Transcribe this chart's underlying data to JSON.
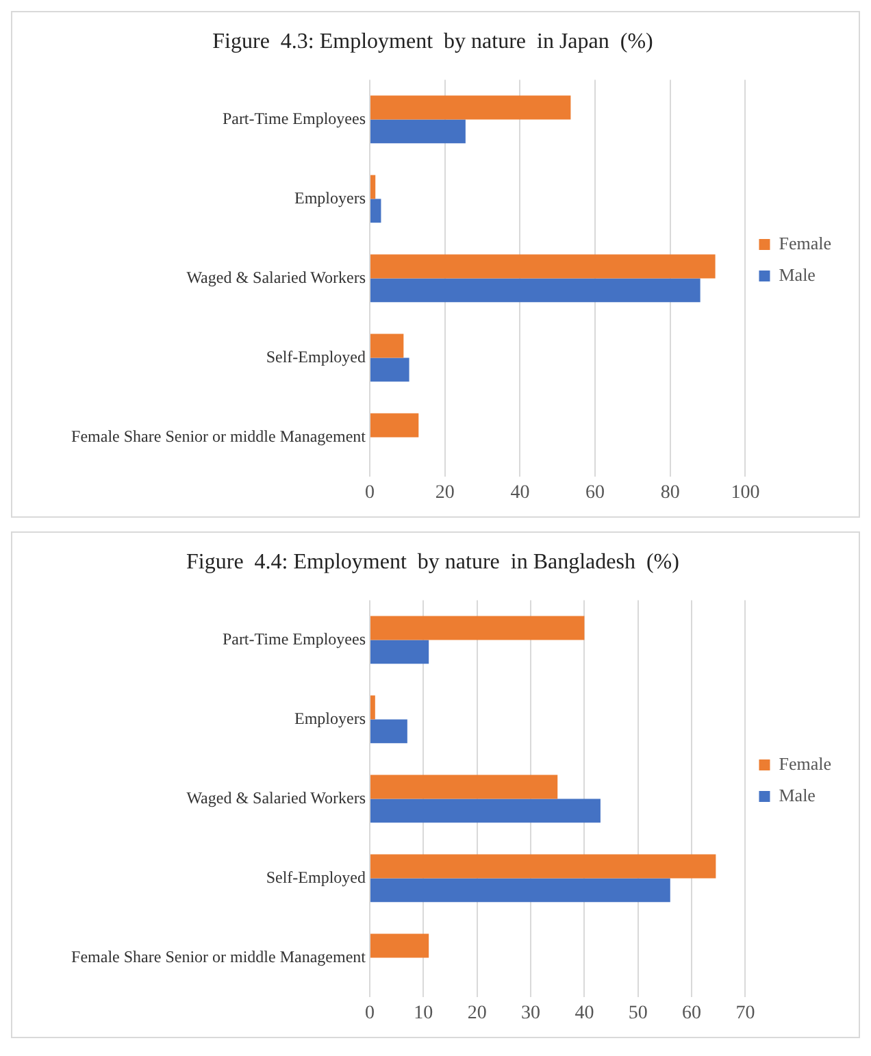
{
  "chart_data": [
    {
      "type": "bar",
      "orientation": "horizontal",
      "title": "Figure  4.3: Employment  by nature  in Japan  (%)",
      "categories": [
        "Part-Time Employees",
        "Employers",
        "Waged & Salaried Workers",
        "Self-Employed",
        "Female Share Senior or middle Management"
      ],
      "series": [
        {
          "name": "Female",
          "color": "#ed7d31",
          "values": [
            53.5,
            1.5,
            92,
            9,
            13
          ]
        },
        {
          "name": "Male",
          "color": "#4472c4",
          "values": [
            25.5,
            3,
            88,
            10.5,
            null
          ]
        }
      ],
      "xlim": [
        0,
        100
      ],
      "xticks": [
        0,
        20,
        40,
        60,
        80,
        100
      ],
      "grid": "x",
      "legend": "right"
    },
    {
      "type": "bar",
      "orientation": "horizontal",
      "title": "Figure  4.4: Employment  by nature  in Bangladesh  (%)",
      "categories": [
        "Part-Time Employees",
        "Employers",
        "Waged & Salaried Workers",
        "Self-Employed",
        "Female Share Senior or middle Management"
      ],
      "series": [
        {
          "name": "Female",
          "color": "#ed7d31",
          "values": [
            40,
            1,
            35,
            64.5,
            11
          ]
        },
        {
          "name": "Male",
          "color": "#4472c4",
          "values": [
            11,
            7,
            43,
            56,
            null
          ]
        }
      ],
      "xlim": [
        0,
        70
      ],
      "xticks": [
        0,
        10,
        20,
        30,
        40,
        50,
        60,
        70
      ],
      "grid": "x",
      "legend": "right"
    }
  ]
}
